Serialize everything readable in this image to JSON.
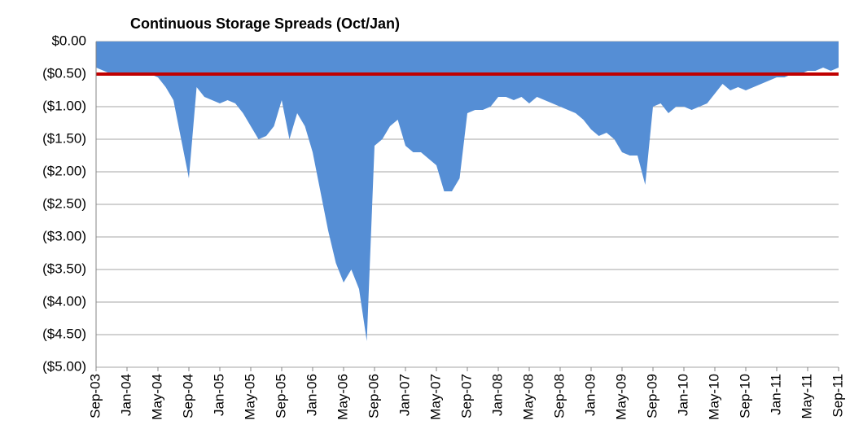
{
  "chart_data": {
    "type": "area",
    "title": "Continuous Storage Spreads (Oct/Jan)",
    "categories": [
      "Sep-03",
      null,
      null,
      null,
      "Jan-04",
      null,
      null,
      null,
      "May-04",
      null,
      null,
      null,
      "Sep-04",
      null,
      null,
      null,
      "Jan-05",
      null,
      null,
      null,
      "May-05",
      null,
      null,
      null,
      "Sep-05",
      null,
      null,
      null,
      "Jan-06",
      null,
      null,
      null,
      "May-06",
      null,
      null,
      null,
      "Sep-06",
      null,
      null,
      null,
      "Jan-07",
      null,
      null,
      null,
      "May-07",
      null,
      null,
      null,
      "Sep-07",
      null,
      null,
      null,
      "Jan-08",
      null,
      null,
      null,
      "May-08",
      null,
      null,
      null,
      "Sep-08",
      null,
      null,
      null,
      "Jan-09",
      null,
      null,
      null,
      "May-09",
      null,
      null,
      null,
      "Sep-09",
      null,
      null,
      null,
      "Jan-10",
      null,
      null,
      null,
      "May-10",
      null,
      null,
      null,
      "Sep-10",
      null,
      null,
      null,
      "Jan-11",
      null,
      null,
      null,
      "May-11",
      null,
      null,
      null,
      "Sep-11"
    ],
    "values": [
      -0.4,
      -0.45,
      -0.5,
      -0.5,
      -0.5,
      -0.5,
      -0.48,
      -0.5,
      -0.55,
      -0.7,
      -0.9,
      -1.5,
      -2.1,
      -0.7,
      -0.85,
      -0.9,
      -0.95,
      -0.9,
      -0.95,
      -1.1,
      -1.3,
      -1.5,
      -1.45,
      -1.3,
      -0.9,
      -1.5,
      -1.1,
      -1.3,
      -1.7,
      -2.3,
      -2.9,
      -3.4,
      -3.7,
      -3.5,
      -3.8,
      -4.6,
      -1.6,
      -1.5,
      -1.3,
      -1.2,
      -1.6,
      -1.7,
      -1.7,
      -1.8,
      -1.9,
      -2.3,
      -2.3,
      -2.1,
      -1.1,
      -1.05,
      -1.05,
      -1.0,
      -0.85,
      -0.85,
      -0.9,
      -0.85,
      -0.95,
      -0.85,
      -0.9,
      -0.95,
      -1.0,
      -1.05,
      -1.1,
      -1.2,
      -1.35,
      -1.45,
      -1.4,
      -1.5,
      -1.7,
      -1.75,
      -1.75,
      -2.2,
      -1.0,
      -0.95,
      -1.1,
      -1.0,
      -1.0,
      -1.05,
      -1.0,
      -0.95,
      -0.8,
      -0.65,
      -0.75,
      -0.7,
      -0.75,
      -0.7,
      -0.65,
      -0.6,
      -0.55,
      -0.55,
      -0.5,
      -0.5,
      -0.45,
      -0.45,
      -0.4,
      -0.45,
      -0.4
    ],
    "color": "#558ed5",
    "reference_line": {
      "value": -0.5,
      "color": "#c00000"
    },
    "ylim": [
      -5,
      0
    ],
    "yticks": [
      {
        "value": 0,
        "label": "$0.00"
      },
      {
        "value": -0.5,
        "label": "($0.50)"
      },
      {
        "value": -1,
        "label": "($1.00)"
      },
      {
        "value": -1.5,
        "label": "($1.50)"
      },
      {
        "value": -2,
        "label": "($2.00)"
      },
      {
        "value": -2.5,
        "label": "($2.50)"
      },
      {
        "value": -3,
        "label": "($3.00)"
      },
      {
        "value": -3.5,
        "label": "($3.50)"
      },
      {
        "value": -4,
        "label": "($4.00)"
      },
      {
        "value": -4.5,
        "label": "($4.50)"
      },
      {
        "value": -5,
        "label": "($5.00)"
      }
    ],
    "grid": true
  }
}
